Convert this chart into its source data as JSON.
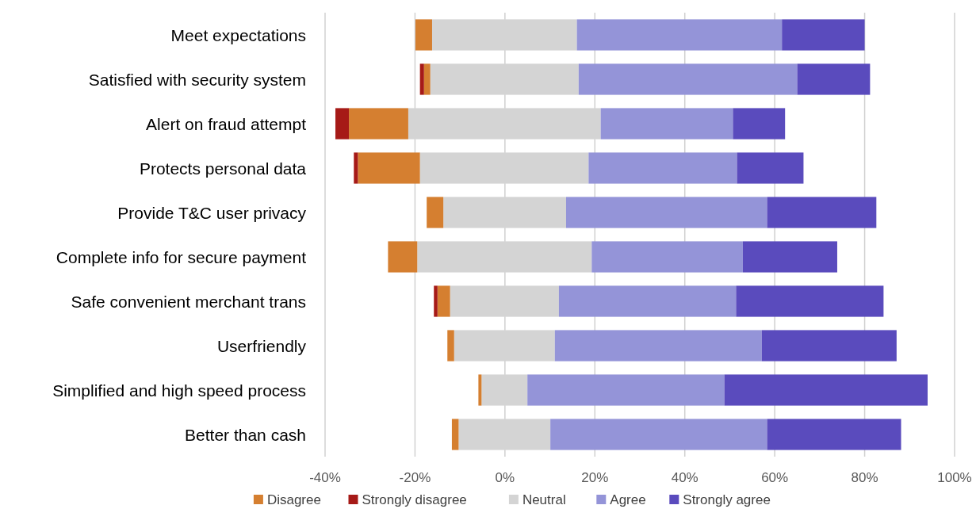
{
  "chart_data": {
    "type": "bar",
    "orientation": "horizontal",
    "stacked": true,
    "categories": [
      "Meet expectations",
      "Satisfied with security system",
      "Alert on fraud attempt",
      "Protects personal data",
      "Provide T&C user privacy",
      "Complete info for secure payment",
      "Safe convenient merchant trans",
      "Userfriendly",
      "Simplified and high speed process",
      "Better than cash"
    ],
    "series": [
      {
        "color": "#d4d4d4",
        "values": [
          -16.2,
          -16.6,
          -21.5,
          -18.9,
          -13.7,
          -19.5,
          -12.2,
          -11.3,
          -5.2,
          -10.3
        ]
      },
      {
        "name": "Disagree",
        "color": "#d57f30",
        "values": [
          -3.7,
          -1.4,
          -13.2,
          -13.8,
          -3.7,
          -6.5,
          -2.8,
          -1.5,
          -0.7,
          -1.5
        ]
      },
      {
        "name": "Strongly disagree",
        "color": "#a61a17",
        "values": [
          null,
          -0.9,
          -3.0,
          -0.9,
          null,
          null,
          -0.8,
          null,
          null,
          null
        ]
      },
      {
        "name": "Neutral",
        "color": "#d4d4d4",
        "values": [
          16.0,
          16.4,
          21.3,
          18.6,
          13.6,
          19.3,
          12.0,
          11.1,
          5.0,
          10.1
        ]
      },
      {
        "name": "Agree",
        "color": "#9494d8",
        "values": [
          45.6,
          48.6,
          29.4,
          33.0,
          44.7,
          33.6,
          39.4,
          46.0,
          43.8,
          48.2
        ]
      },
      {
        "name": "Strongly agree",
        "color": "#5a4bbd",
        "values": [
          18.4,
          16.2,
          11.6,
          14.8,
          24.3,
          21.0,
          32.8,
          30.0,
          45.2,
          29.8
        ]
      }
    ],
    "xlim": [
      -40,
      100
    ],
    "xticks": [
      {
        "value": -40,
        "label": "-40%"
      },
      {
        "value": -20,
        "label": "-20%"
      },
      {
        "value": 0,
        "label": "0%"
      },
      {
        "value": 20,
        "label": "20%"
      },
      {
        "value": 40,
        "label": "40%"
      },
      {
        "value": 60,
        "label": "60%"
      },
      {
        "value": 80,
        "label": "80%"
      },
      {
        "value": 100,
        "label": "100%"
      }
    ],
    "grid": "x",
    "legend": "bottom"
  }
}
